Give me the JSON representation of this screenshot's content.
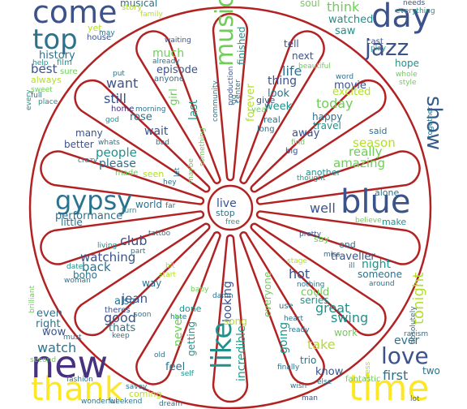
{
  "mask": {
    "stroke_color": "#b22222",
    "spokes": 14
  },
  "palette": {
    "purple": "#46327e",
    "navy": "#3b528b",
    "blue": "#365c8d",
    "slate": "#2c728e",
    "teal": "#21918c",
    "sea": "#1f9e89",
    "green": "#35b779",
    "lime": "#6ece58",
    "yellowgreen": "#b5de2b",
    "yellow": "#fde725"
  },
  "words": [
    {
      "text": "come",
      "color": "navy"
    },
    {
      "text": "top",
      "color": "slate"
    },
    {
      "text": "day",
      "color": "navy"
    },
    {
      "text": "jazz",
      "color": "navy"
    },
    {
      "text": "show",
      "color": "blue"
    },
    {
      "text": "music",
      "color": "lime"
    },
    {
      "text": "finished",
      "color": "teal"
    },
    {
      "text": "thank",
      "color": "yellow"
    },
    {
      "text": "new",
      "color": "purple"
    },
    {
      "text": "time",
      "color": "yellow"
    },
    {
      "text": "love",
      "color": "navy"
    },
    {
      "text": "blue",
      "color": "navy"
    },
    {
      "text": "gypsy",
      "color": "slate"
    },
    {
      "text": "like",
      "color": "teal"
    },
    {
      "text": "incredible",
      "color": "sea"
    },
    {
      "text": "tonight",
      "color": "yellowgreen"
    },
    {
      "text": "first",
      "color": "slate"
    },
    {
      "text": "live",
      "color": "navy"
    },
    {
      "text": "stop",
      "color": "slate"
    },
    {
      "text": "free",
      "color": "sea"
    },
    {
      "text": "well",
      "color": "navy"
    },
    {
      "text": "alone",
      "color": "slate"
    },
    {
      "text": "make",
      "color": "teal"
    },
    {
      "text": "believe",
      "color": "lime"
    },
    {
      "text": "think",
      "color": "lime"
    },
    {
      "text": "watched",
      "color": "teal"
    },
    {
      "text": "saw",
      "color": "teal"
    },
    {
      "text": "hope",
      "color": "teal"
    },
    {
      "text": "style",
      "color": "lime"
    },
    {
      "text": "whole",
      "color": "lime"
    },
    {
      "text": "cast",
      "color": "navy"
    },
    {
      "text": "play",
      "color": "teal"
    },
    {
      "text": "soul",
      "color": "lime"
    },
    {
      "text": "needs",
      "color": "navy"
    },
    {
      "text": "everything",
      "color": "teal"
    },
    {
      "text": "tell",
      "color": "navy"
    },
    {
      "text": "next",
      "color": "navy"
    },
    {
      "text": "beautiful",
      "color": "lime"
    },
    {
      "text": "life",
      "color": "slate"
    },
    {
      "text": "thing",
      "color": "navy"
    },
    {
      "text": "look",
      "color": "slate"
    },
    {
      "text": "week",
      "color": "teal"
    },
    {
      "text": "give",
      "color": "navy"
    },
    {
      "text": "year",
      "color": "lime"
    },
    {
      "text": "real",
      "color": "slate"
    },
    {
      "text": "long",
      "color": "slate"
    },
    {
      "text": "word",
      "color": "slate"
    },
    {
      "text": "movie",
      "color": "navy"
    },
    {
      "text": "excited",
      "color": "yellowgreen"
    },
    {
      "text": "today",
      "color": "lime"
    },
    {
      "text": "happy",
      "color": "slate"
    },
    {
      "text": "travel",
      "color": "teal"
    },
    {
      "text": "away",
      "color": "navy"
    },
    {
      "text": "find",
      "color": "lime"
    },
    {
      "text": "big",
      "color": "navy"
    },
    {
      "text": "said",
      "color": "slate"
    },
    {
      "text": "season",
      "color": "yellowgreen"
    },
    {
      "text": "really",
      "color": "lime"
    },
    {
      "text": "amazing",
      "color": "lime"
    },
    {
      "text": "another",
      "color": "teal"
    },
    {
      "text": "thought",
      "color": "teal"
    },
    {
      "text": "together",
      "color": "slate"
    },
    {
      "text": "musical",
      "color": "slate"
    },
    {
      "text": "yet",
      "color": "yellowgreen"
    },
    {
      "text": "may",
      "color": "slate"
    },
    {
      "text": "house",
      "color": "navy"
    },
    {
      "text": "family",
      "color": "yellowgreen"
    },
    {
      "text": "history",
      "color": "slate"
    },
    {
      "text": "film",
      "color": "teal"
    },
    {
      "text": "help",
      "color": "teal"
    },
    {
      "text": "best",
      "color": "navy"
    },
    {
      "text": "sure",
      "color": "lime"
    },
    {
      "text": "always",
      "color": "yellowgreen"
    },
    {
      "text": "sweet",
      "color": "lime"
    },
    {
      "text": "full",
      "color": "slate"
    },
    {
      "text": "every",
      "color": "teal"
    },
    {
      "text": "place",
      "color": "teal"
    },
    {
      "text": "much",
      "color": "lime"
    },
    {
      "text": "waiting",
      "color": "navy"
    },
    {
      "text": "episode",
      "color": "navy"
    },
    {
      "text": "already",
      "color": "slate"
    },
    {
      "text": "anyone",
      "color": "slate"
    },
    {
      "text": "want",
      "color": "navy"
    },
    {
      "text": "still",
      "color": "navy"
    },
    {
      "text": "put",
      "color": "slate"
    },
    {
      "text": "girl",
      "color": "lime"
    },
    {
      "text": "last",
      "color": "sea"
    },
    {
      "text": "home",
      "color": "purple"
    },
    {
      "text": "morning",
      "color": "slate"
    },
    {
      "text": "god",
      "color": "teal"
    },
    {
      "text": "rose",
      "color": "slate"
    },
    {
      "text": "wait",
      "color": "navy"
    },
    {
      "text": "bad",
      "color": "slate"
    },
    {
      "text": "something",
      "color": "lime"
    },
    {
      "text": "community",
      "color": "slate"
    },
    {
      "text": "production",
      "color": "navy"
    },
    {
      "text": "gq",
      "color": "slate"
    },
    {
      "text": "center",
      "color": "slate"
    },
    {
      "text": "forever",
      "color": "yellowgreen"
    },
    {
      "text": "many",
      "color": "navy"
    },
    {
      "text": "better",
      "color": "navy"
    },
    {
      "text": "whats",
      "color": "slate"
    },
    {
      "text": "crazy",
      "color": "slate"
    },
    {
      "text": "people",
      "color": "teal"
    },
    {
      "text": "please",
      "color": "slate"
    },
    {
      "text": "made",
      "color": "lime"
    },
    {
      "text": "seen",
      "color": "yellowgreen"
    },
    {
      "text": "let",
      "color": "slate"
    },
    {
      "text": "hey",
      "color": "slate"
    },
    {
      "text": "maybe",
      "color": "lime"
    },
    {
      "text": "performance",
      "color": "slate"
    },
    {
      "text": "little",
      "color": "slate"
    },
    {
      "text": "world",
      "color": "slate"
    },
    {
      "text": "far",
      "color": "slate"
    },
    {
      "text": "turn",
      "color": "teal"
    },
    {
      "text": "tattoo",
      "color": "slate"
    },
    {
      "text": "club",
      "color": "navy"
    },
    {
      "text": "living",
      "color": "teal"
    },
    {
      "text": "watching",
      "color": "navy"
    },
    {
      "text": "back",
      "color": "slate"
    },
    {
      "text": "part",
      "color": "slate"
    },
    {
      "text": "boho",
      "color": "slate"
    },
    {
      "text": "date",
      "color": "teal"
    },
    {
      "text": "woman",
      "color": "slate"
    },
    {
      "text": "bit",
      "color": "yellowgreen"
    },
    {
      "text": "start",
      "color": "yellowgreen"
    },
    {
      "text": "way",
      "color": "slate"
    },
    {
      "text": "jean",
      "color": "navy"
    },
    {
      "text": "theres",
      "color": "navy"
    },
    {
      "text": "soon",
      "color": "slate"
    },
    {
      "text": "also",
      "color": "slate"
    },
    {
      "text": "good",
      "color": "navy"
    },
    {
      "text": "thats",
      "color": "slate"
    },
    {
      "text": "keep",
      "color": "slate"
    },
    {
      "text": "baby",
      "color": "lime"
    },
    {
      "text": "damn",
      "color": "slate"
    },
    {
      "text": "done",
      "color": "teal"
    },
    {
      "text": "hate",
      "color": "slate"
    },
    {
      "text": "never",
      "color": "lime"
    },
    {
      "text": "getting",
      "color": "teal"
    },
    {
      "text": "old",
      "color": "slate"
    },
    {
      "text": "feel",
      "color": "slate"
    },
    {
      "text": "self",
      "color": "teal"
    },
    {
      "text": "looking",
      "color": "navy"
    },
    {
      "text": "song",
      "color": "yellowgreen"
    },
    {
      "text": "everyone",
      "color": "lime"
    },
    {
      "text": "end",
      "color": "slate"
    },
    {
      "text": "miss",
      "color": "slate"
    },
    {
      "text": "ill",
      "color": "slate"
    },
    {
      "text": "pretty",
      "color": "navy"
    },
    {
      "text": "say",
      "color": "lime"
    },
    {
      "text": "traveller",
      "color": "navy"
    },
    {
      "text": "night",
      "color": "teal"
    },
    {
      "text": "someone",
      "color": "slate"
    },
    {
      "text": "around",
      "color": "slate"
    },
    {
      "text": "hot",
      "color": "navy"
    },
    {
      "text": "nothing",
      "color": "slate"
    },
    {
      "text": "stage",
      "color": "yellowgreen"
    },
    {
      "text": "could",
      "color": "lime"
    },
    {
      "text": "series",
      "color": "teal"
    },
    {
      "text": "use",
      "color": "slate"
    },
    {
      "text": "great",
      "color": "teal"
    },
    {
      "text": "swing",
      "color": "teal"
    },
    {
      "text": "heart",
      "color": "slate"
    },
    {
      "text": "work",
      "color": "lime"
    },
    {
      "text": "ready",
      "color": "slate"
    },
    {
      "text": "going",
      "color": "teal"
    },
    {
      "text": "take",
      "color": "yellowgreen"
    },
    {
      "text": "trio",
      "color": "slate"
    },
    {
      "text": "ever",
      "color": "slate"
    },
    {
      "text": "racism",
      "color": "slate"
    },
    {
      "text": "absolutely",
      "color": "slate"
    },
    {
      "text": "two",
      "color": "slate"
    },
    {
      "text": "dress",
      "color": "yellowgreen"
    },
    {
      "text": "finally",
      "color": "slate"
    },
    {
      "text": "wish",
      "color": "slate"
    },
    {
      "text": "know",
      "color": "navy"
    },
    {
      "text": "else",
      "color": "slate"
    },
    {
      "text": "fantastic",
      "color": "lime"
    },
    {
      "text": "man",
      "color": "navy"
    },
    {
      "text": "lot",
      "color": "slate"
    },
    {
      "text": "dream",
      "color": "slate"
    },
    {
      "text": "coming",
      "color": "yellowgreen"
    },
    {
      "text": "savoy",
      "color": "slate"
    },
    {
      "text": "wonderful",
      "color": "slate"
    },
    {
      "text": "weekend",
      "color": "slate"
    },
    {
      "text": "fashion",
      "color": "slate"
    },
    {
      "text": "story",
      "color": "yellowgreen"
    },
    {
      "text": "brilliant",
      "color": "lime"
    },
    {
      "text": "even",
      "color": "slate"
    },
    {
      "text": "right",
      "color": "slate"
    },
    {
      "text": "wow",
      "color": "navy"
    },
    {
      "text": "must",
      "color": "slate"
    },
    {
      "text": "watch",
      "color": "slate"
    },
    {
      "text": "second",
      "color": "lime"
    }
  ]
}
